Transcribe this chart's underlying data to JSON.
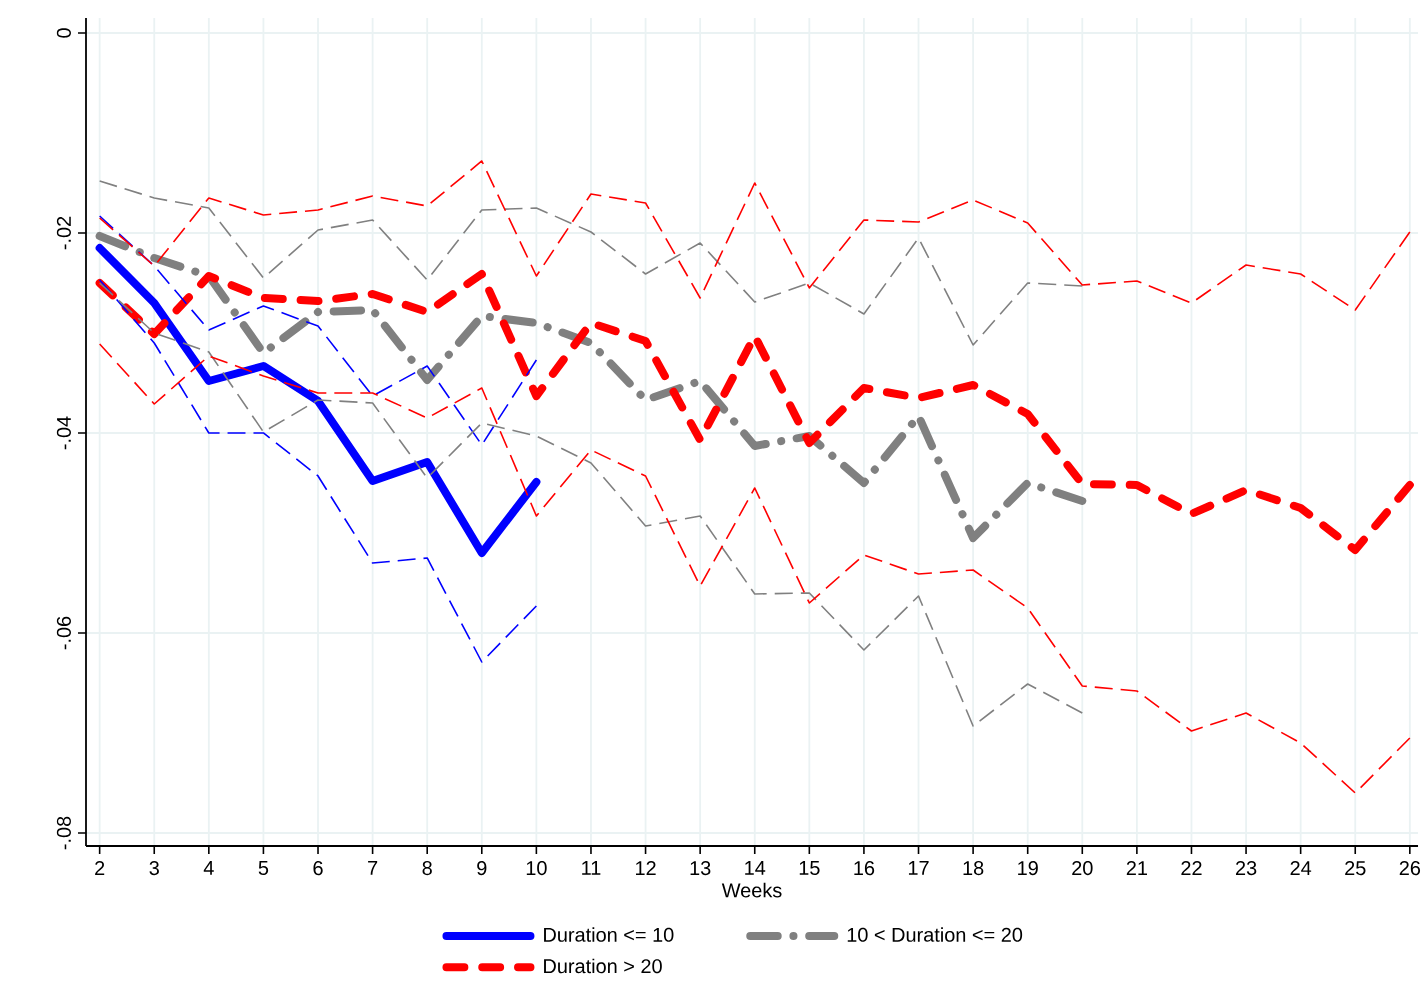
{
  "chart_data": {
    "type": "line",
    "xlabel": "Weeks",
    "xlim": [
      1.75,
      26.15
    ],
    "ylim": [
      -0.0813,
      0.0015
    ],
    "xticks": [
      2,
      3,
      4,
      5,
      6,
      7,
      8,
      9,
      10,
      11,
      12,
      13,
      14,
      15,
      16,
      17,
      18,
      19,
      20,
      21,
      22,
      23,
      24,
      25,
      26
    ],
    "yticks": [
      {
        "value": -0.08,
        "label": "-.08"
      },
      {
        "value": -0.06,
        "label": "-.06"
      },
      {
        "value": -0.04,
        "label": "-.04"
      },
      {
        "value": -0.02,
        "label": "-.02"
      },
      0
    ],
    "grid": true,
    "legend": "bottom",
    "marker": "none",
    "series": [
      {
        "name": "Duration <= 10",
        "color": "#0000ff",
        "line_style": "solid",
        "x": [
          2,
          3,
          4,
          5,
          6,
          7,
          8,
          9,
          10
        ],
        "values": [
          -0.0215,
          -0.027,
          -0.0348,
          -0.0333,
          -0.0368,
          -0.0448,
          -0.0429,
          -0.052,
          -0.0449
        ]
      },
      {
        "name": "10 < Duration <= 20",
        "color": "#808080",
        "line_style": "dashdot",
        "x": [
          2,
          3,
          4,
          5,
          6,
          7,
          8,
          9,
          10,
          11,
          12,
          13,
          14,
          15,
          16,
          17,
          18,
          19,
          20
        ],
        "values": [
          -0.0203,
          -0.0225,
          -0.0243,
          -0.032,
          -0.0279,
          -0.0277,
          -0.0347,
          -0.0283,
          -0.029,
          -0.031,
          -0.0367,
          -0.0348,
          -0.0413,
          -0.0403,
          -0.045,
          -0.0383,
          -0.0505,
          -0.045,
          -0.0468
        ]
      },
      {
        "name": "Duration > 20",
        "color": "#ff0000",
        "line_style": "dashed",
        "x": [
          2,
          3,
          4,
          5,
          6,
          7,
          8,
          9,
          10,
          11,
          12,
          13,
          14,
          15,
          16,
          17,
          18,
          19,
          20,
          21,
          22,
          23,
          24,
          25,
          26
        ],
        "values": [
          -0.025,
          -0.0301,
          -0.0243,
          -0.0265,
          -0.0268,
          -0.0261,
          -0.0279,
          -0.0241,
          -0.0363,
          -0.029,
          -0.0308,
          -0.0407,
          -0.0303,
          -0.041,
          -0.0355,
          -0.0365,
          -0.0352,
          -0.0381,
          -0.0451,
          -0.0452,
          -0.0481,
          -0.0457,
          -0.0475,
          -0.0517,
          -0.0452
        ]
      },
      {
        "color": "#0000ff",
        "line_style": "dashed",
        "x": [
          2,
          3,
          4,
          5,
          6,
          7,
          8,
          9,
          10
        ],
        "values": [
          -0.0183,
          -0.0233,
          -0.0297,
          -0.0273,
          -0.0293,
          -0.0363,
          -0.0333,
          -0.0412,
          -0.0327
        ]
      },
      {
        "color": "#0000ff",
        "line_style": "dashed",
        "x": [
          2,
          3,
          4,
          5,
          6,
          7,
          8,
          9,
          10
        ],
        "values": [
          -0.0247,
          -0.031,
          -0.04,
          -0.04,
          -0.0443,
          -0.053,
          -0.0525,
          -0.0629,
          -0.0573
        ]
      },
      {
        "color": "#808080",
        "line_style": "dashed",
        "x": [
          2,
          3,
          4,
          5,
          6,
          7,
          8,
          9,
          10,
          11,
          12,
          13,
          14,
          15,
          16,
          17,
          18,
          19,
          20
        ],
        "values": [
          -0.0148,
          -0.0165,
          -0.0175,
          -0.0245,
          -0.0197,
          -0.0187,
          -0.0247,
          -0.0177,
          -0.0175,
          -0.0199,
          -0.0241,
          -0.021,
          -0.0269,
          -0.025,
          -0.0281,
          -0.0205,
          -0.0312,
          -0.025,
          -0.0253
        ]
      },
      {
        "color": "#808080",
        "line_style": "dashed",
        "x": [
          2,
          3,
          4,
          5,
          6,
          7,
          8,
          9,
          10,
          11,
          12,
          13,
          14,
          15,
          16,
          17,
          18,
          19,
          20
        ],
        "values": [
          -0.025,
          -0.03,
          -0.0319,
          -0.0399,
          -0.0367,
          -0.037,
          -0.0445,
          -0.039,
          -0.0403,
          -0.043,
          -0.0493,
          -0.0483,
          -0.0561,
          -0.056,
          -0.0617,
          -0.0563,
          -0.0693,
          -0.0651,
          -0.068
        ]
      },
      {
        "color": "#ff0000",
        "line_style": "dashed",
        "x": [
          2,
          3,
          4,
          5,
          6,
          7,
          8,
          9,
          10,
          11,
          12,
          13,
          14,
          15,
          16,
          17,
          18,
          19,
          20,
          21,
          22,
          23,
          24,
          25,
          26
        ],
        "values": [
          -0.0185,
          -0.0233,
          -0.0165,
          -0.0182,
          -0.0177,
          -0.0163,
          -0.0173,
          -0.0128,
          -0.0243,
          -0.0161,
          -0.017,
          -0.0265,
          -0.015,
          -0.0255,
          -0.0187,
          -0.0189,
          -0.0167,
          -0.019,
          -0.0252,
          -0.0248,
          -0.027,
          -0.0232,
          -0.0241,
          -0.0277,
          -0.0199
        ]
      },
      {
        "color": "#ff0000",
        "line_style": "dashed",
        "x": [
          2,
          3,
          4,
          5,
          6,
          7,
          8,
          9,
          10,
          11,
          12,
          13,
          14,
          15,
          16,
          17,
          18,
          19,
          20,
          21,
          22,
          23,
          24,
          25,
          26
        ],
        "values": [
          -0.0311,
          -0.0371,
          -0.0323,
          -0.0343,
          -0.036,
          -0.036,
          -0.0385,
          -0.0355,
          -0.0483,
          -0.0417,
          -0.0443,
          -0.0553,
          -0.0455,
          -0.057,
          -0.0522,
          -0.0541,
          -0.0537,
          -0.0575,
          -0.0653,
          -0.0658,
          -0.0698,
          -0.068,
          -0.071,
          -0.076,
          -0.0705
        ]
      }
    ]
  }
}
